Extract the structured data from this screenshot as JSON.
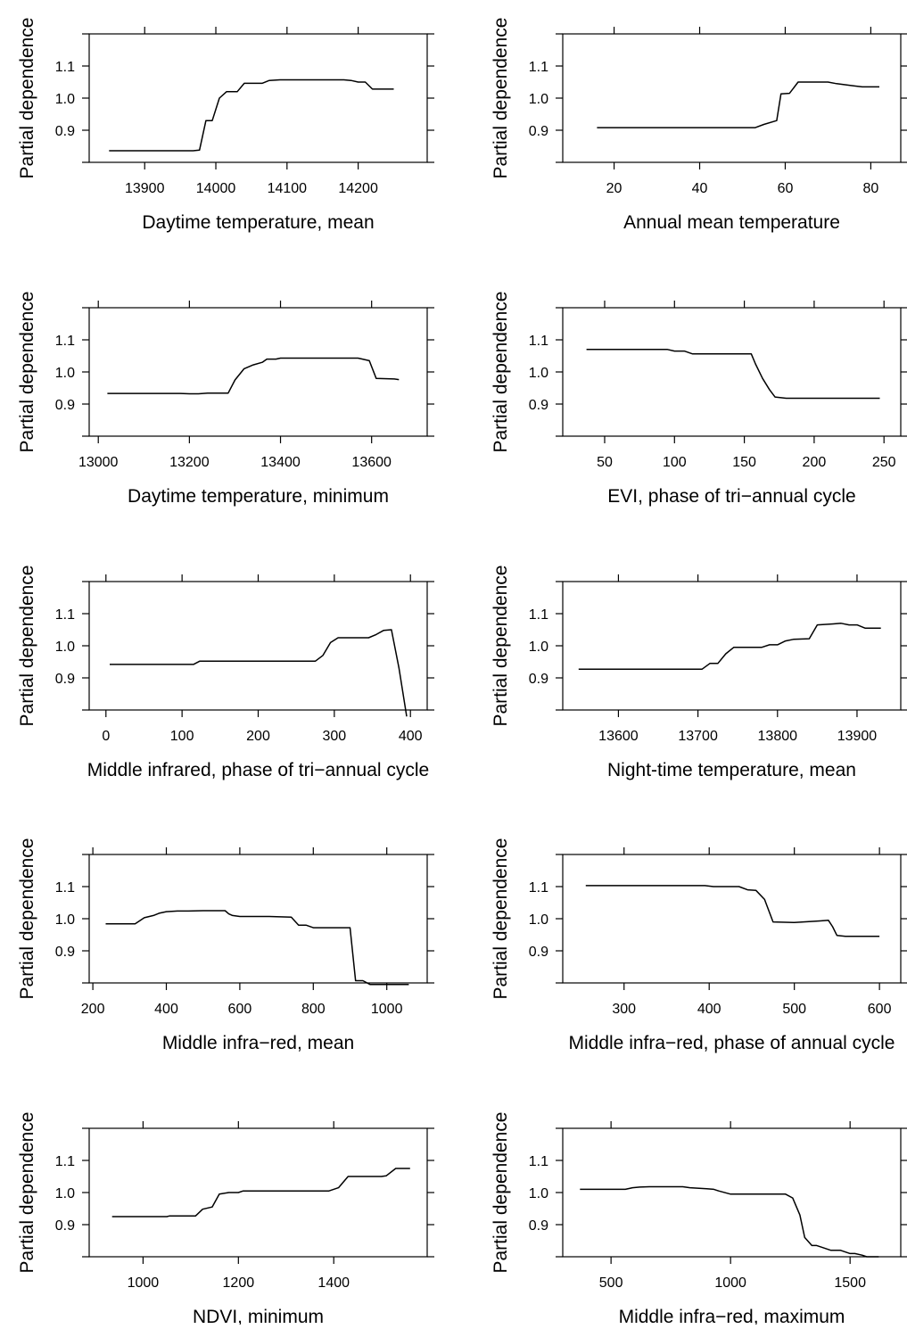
{
  "figure": {
    "ylabel": "Partial dependence"
  },
  "chart_data": [
    {
      "type": "line",
      "xlabel": "Daytime temperature, mean",
      "ylabel": "Partial dependence",
      "xlim": [
        13822,
        14297
      ],
      "ylim": [
        0.8,
        1.2
      ],
      "xticks": [
        13900,
        14000,
        14100,
        14200
      ],
      "xtick_labels": [
        "13900",
        "14000",
        "14100",
        "14200"
      ],
      "yticks": [
        0.9,
        1.0,
        1.1
      ],
      "ytick_labels": [
        "0.9",
        "1.0",
        "1.1"
      ],
      "x": [
        13850,
        13950,
        13968,
        13977,
        13986,
        13995,
        14005,
        14015,
        14030,
        14040,
        14050,
        14065,
        14075,
        14090,
        14100,
        14150,
        14180,
        14190,
        14200,
        14210,
        14220,
        14230,
        14250
      ],
      "y": [
        0.836,
        0.836,
        0.836,
        0.838,
        0.93,
        0.93,
        1.0,
        1.02,
        1.02,
        1.046,
        1.046,
        1.046,
        1.055,
        1.057,
        1.057,
        1.057,
        1.057,
        1.055,
        1.05,
        1.05,
        1.028,
        1.028,
        1.028
      ]
    },
    {
      "type": "line",
      "xlabel": "Annual mean temperature",
      "ylabel": "Partial dependence",
      "xlim": [
        8,
        87
      ],
      "ylim": [
        0.8,
        1.2
      ],
      "xticks": [
        20,
        40,
        60,
        80
      ],
      "xtick_labels": [
        "20",
        "40",
        "60",
        "80"
      ],
      "yticks": [
        0.9,
        1.0,
        1.1
      ],
      "ytick_labels": [
        "0.9",
        "1.0",
        "1.1"
      ],
      "x": [
        16,
        53,
        55,
        58,
        59,
        61,
        63,
        70,
        72,
        76,
        78,
        82
      ],
      "y": [
        0.908,
        0.908,
        0.918,
        0.93,
        1.013,
        1.015,
        1.05,
        1.05,
        1.045,
        1.038,
        1.035,
        1.035
      ]
    },
    {
      "type": "line",
      "xlabel": "Daytime temperature, minimum",
      "ylabel": "Partial dependence",
      "xlim": [
        12980,
        13722
      ],
      "ylim": [
        0.8,
        1.2
      ],
      "xticks": [
        13000,
        13200,
        13400,
        13600
      ],
      "xtick_labels": [
        "13000",
        "13200",
        "13400",
        "13600"
      ],
      "yticks": [
        0.9,
        1.0,
        1.1
      ],
      "ytick_labels": [
        "0.9",
        "1.0",
        "1.1"
      ],
      "x": [
        13020,
        13180,
        13200,
        13220,
        13240,
        13285,
        13300,
        13320,
        13340,
        13360,
        13370,
        13390,
        13400,
        13570,
        13580,
        13595,
        13610,
        13650,
        13660
      ],
      "y": [
        0.933,
        0.933,
        0.932,
        0.932,
        0.934,
        0.934,
        0.975,
        1.01,
        1.022,
        1.03,
        1.04,
        1.04,
        1.043,
        1.043,
        1.04,
        1.035,
        0.98,
        0.978,
        0.976
      ]
    },
    {
      "type": "line",
      "xlabel": "EVI, phase of tri−annual cycle",
      "ylabel": "Partial dependence",
      "xlim": [
        20,
        262
      ],
      "ylim": [
        0.8,
        1.2
      ],
      "xticks": [
        50,
        100,
        150,
        200,
        250
      ],
      "xtick_labels": [
        "50",
        "100",
        "150",
        "200",
        "250"
      ],
      "yticks": [
        0.9,
        1.0,
        1.1
      ],
      "ytick_labels": [
        "0.9",
        "1.0",
        "1.1"
      ],
      "x": [
        37,
        95,
        100,
        107,
        113,
        155,
        158,
        163,
        168,
        172,
        180,
        247
      ],
      "y": [
        1.07,
        1.07,
        1.065,
        1.065,
        1.056,
        1.056,
        1.025,
        0.98,
        0.945,
        0.922,
        0.918,
        0.918
      ]
    },
    {
      "type": "line",
      "xlabel": "Middle infrared, phase of tri−annual cycle",
      "ylabel": "Partial dependence",
      "xlim": [
        -22,
        422
      ],
      "ylim": [
        0.8,
        1.2
      ],
      "xticks": [
        0,
        100,
        200,
        300,
        400
      ],
      "xtick_labels": [
        "0",
        "100",
        "200",
        "300",
        "400"
      ],
      "yticks": [
        0.9,
        1.0,
        1.1
      ],
      "ytick_labels": [
        "0.9",
        "1.0",
        "1.1"
      ],
      "x": [
        5,
        115,
        123,
        275,
        285,
        295,
        305,
        345,
        355,
        365,
        375,
        385,
        395
      ],
      "y": [
        0.942,
        0.942,
        0.952,
        0.952,
        0.97,
        1.01,
        1.025,
        1.025,
        1.035,
        1.048,
        1.05,
        0.93,
        0.78
      ]
    },
    {
      "type": "line",
      "xlabel": "Night-time temperature, mean",
      "ylabel": "Partial dependence",
      "xlim": [
        13530,
        13955
      ],
      "ylim": [
        0.8,
        1.2
      ],
      "xticks": [
        13600,
        13700,
        13800,
        13900
      ],
      "xtick_labels": [
        "13600",
        "13700",
        "13800",
        "13900"
      ],
      "yticks": [
        0.9,
        1.0,
        1.1
      ],
      "ytick_labels": [
        "0.9",
        "1.0",
        "1.1"
      ],
      "x": [
        13550,
        13705,
        13715,
        13725,
        13735,
        13745,
        13780,
        13790,
        13800,
        13810,
        13820,
        13840,
        13850,
        13870,
        13880,
        13890,
        13900,
        13910,
        13930
      ],
      "y": [
        0.927,
        0.927,
        0.945,
        0.945,
        0.975,
        0.995,
        0.995,
        1.003,
        1.003,
        1.015,
        1.02,
        1.022,
        1.065,
        1.068,
        1.07,
        1.065,
        1.065,
        1.055,
        1.055
      ]
    },
    {
      "type": "line",
      "xlabel": "Middle infra−red, mean",
      "ylabel": "Partial dependence",
      "xlim": [
        190,
        1110
      ],
      "ylim": [
        0.8,
        1.2
      ],
      "xticks": [
        200,
        400,
        600,
        800,
        1000
      ],
      "xtick_labels": [
        "200",
        "400",
        "600",
        "800",
        "1000"
      ],
      "yticks": [
        0.9,
        1.0,
        1.1
      ],
      "ytick_labels": [
        "0.9",
        "1.0",
        "1.1"
      ],
      "x": [
        235,
        315,
        340,
        365,
        380,
        400,
        430,
        460,
        500,
        560,
        570,
        580,
        600,
        640,
        680,
        740,
        760,
        780,
        800,
        900,
        915,
        935,
        955,
        1000,
        1060
      ],
      "y": [
        0.984,
        0.984,
        1.003,
        1.01,
        1.017,
        1.022,
        1.024,
        1.024,
        1.025,
        1.025,
        1.015,
        1.01,
        1.007,
        1.007,
        1.007,
        1.005,
        0.98,
        0.98,
        0.972,
        0.972,
        0.807,
        0.807,
        0.795,
        0.795,
        0.795
      ]
    },
    {
      "type": "line",
      "xlabel": "Middle infra−red, phase of annual cycle",
      "ylabel": "Partial dependence",
      "xlim": [
        228,
        625
      ],
      "ylim": [
        0.8,
        1.2
      ],
      "xticks": [
        300,
        400,
        500,
        600
      ],
      "xtick_labels": [
        "300",
        "400",
        "500",
        "600"
      ],
      "yticks": [
        0.9,
        1.0,
        1.1
      ],
      "ytick_labels": [
        "0.9",
        "1.0",
        "1.1"
      ],
      "x": [
        255,
        395,
        405,
        435,
        445,
        455,
        465,
        475,
        500,
        530,
        540,
        545,
        550,
        560,
        600
      ],
      "y": [
        1.103,
        1.103,
        1.1,
        1.1,
        1.09,
        1.088,
        1.06,
        0.99,
        0.988,
        0.993,
        0.995,
        0.975,
        0.948,
        0.945,
        0.945
      ]
    },
    {
      "type": "line",
      "xlabel": "NDVI, minimum",
      "ylabel": "Partial dependence",
      "xlim": [
        887,
        1596
      ],
      "ylim": [
        0.8,
        1.2
      ],
      "xticks": [
        1000,
        1200,
        1400
      ],
      "xtick_labels": [
        "1000",
        "1200",
        "1400"
      ],
      "yticks": [
        0.9,
        1.0,
        1.1
      ],
      "ytick_labels": [
        "0.9",
        "1.0",
        "1.1"
      ],
      "x": [
        935,
        1050,
        1055,
        1110,
        1125,
        1145,
        1160,
        1180,
        1200,
        1210,
        1250,
        1380,
        1390,
        1410,
        1430,
        1500,
        1510,
        1530,
        1560
      ],
      "y": [
        0.925,
        0.925,
        0.927,
        0.927,
        0.948,
        0.955,
        0.995,
        1.0,
        1.0,
        1.005,
        1.005,
        1.005,
        1.005,
        1.015,
        1.05,
        1.05,
        1.052,
        1.075,
        1.075
      ]
    },
    {
      "type": "line",
      "xlabel": "Middle infra−red, maximum",
      "ylabel": "Partial dependence",
      "xlim": [
        298,
        1712
      ],
      "ylim": [
        0.8,
        1.2
      ],
      "xticks": [
        500,
        1000,
        1500
      ],
      "xtick_labels": [
        "500",
        "1000",
        "1500"
      ],
      "yticks": [
        0.9,
        1.0,
        1.1
      ],
      "ytick_labels": [
        "0.9",
        "1.0",
        "1.1"
      ],
      "x": [
        370,
        560,
        590,
        620,
        660,
        800,
        830,
        900,
        930,
        950,
        1000,
        1020,
        1050,
        1230,
        1260,
        1290,
        1310,
        1340,
        1360,
        1380,
        1420,
        1460,
        1500,
        1520,
        1550,
        1570,
        1620
      ],
      "y": [
        1.01,
        1.01,
        1.015,
        1.017,
        1.018,
        1.018,
        1.015,
        1.012,
        1.01,
        1.005,
        0.995,
        0.995,
        0.995,
        0.995,
        0.983,
        0.93,
        0.86,
        0.835,
        0.835,
        0.83,
        0.82,
        0.82,
        0.81,
        0.81,
        0.805,
        0.8,
        0.8
      ]
    }
  ]
}
